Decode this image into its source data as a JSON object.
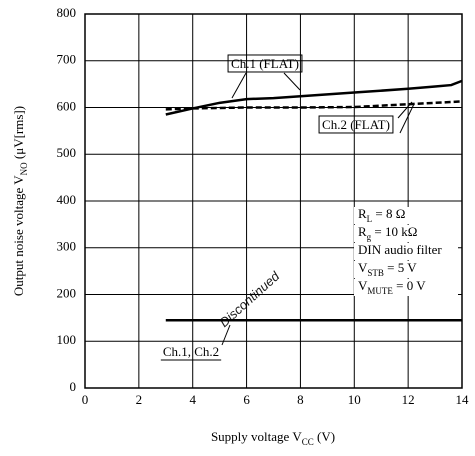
{
  "chart_data": {
    "type": "line",
    "y_label": [
      "Output noise voltage  V",
      "NO",
      "  (μV[rms])"
    ],
    "x_label": [
      "Supply voltage  V",
      "CC",
      "  (V)"
    ],
    "xlim": [
      0,
      14
    ],
    "xticks": [
      0,
      2,
      4,
      6,
      8,
      10,
      12,
      14
    ],
    "ylim": [
      0,
      800
    ],
    "yticks": [
      0,
      100,
      200,
      300,
      400,
      500,
      600,
      700,
      800
    ],
    "grid": true,
    "series": [
      {
        "name": "Ch.1 (FLAT)",
        "color": "#000000",
        "dash": false,
        "x": [
          3,
          4,
          5,
          6,
          7,
          8,
          10,
          12,
          13,
          13.6,
          14
        ],
        "values": [
          585,
          598,
          610,
          618,
          620,
          624,
          632,
          640,
          645,
          648,
          657
        ]
      },
      {
        "name": "Ch.2 (FLAT)",
        "color": "#000000",
        "dash": true,
        "x": [
          3,
          4,
          6,
          8,
          10,
          12,
          14
        ],
        "values": [
          596,
          598,
          600,
          600,
          601,
          607,
          613
        ]
      },
      {
        "name": "Ch.1, Ch.2",
        "color": "#000000",
        "dash": false,
        "x": [
          3,
          14
        ],
        "values": [
          145,
          145
        ]
      }
    ],
    "conditions": [
      [
        "R",
        "L",
        " = 8 Ω"
      ],
      [
        "R",
        "g",
        " = 10 kΩ"
      ],
      [
        "DIN audio filter"
      ],
      [
        "V",
        "STB",
        " = 5 V"
      ],
      [
        "V",
        "MUTE",
        " = 0 V"
      ]
    ],
    "watermark": "Discontinued"
  }
}
